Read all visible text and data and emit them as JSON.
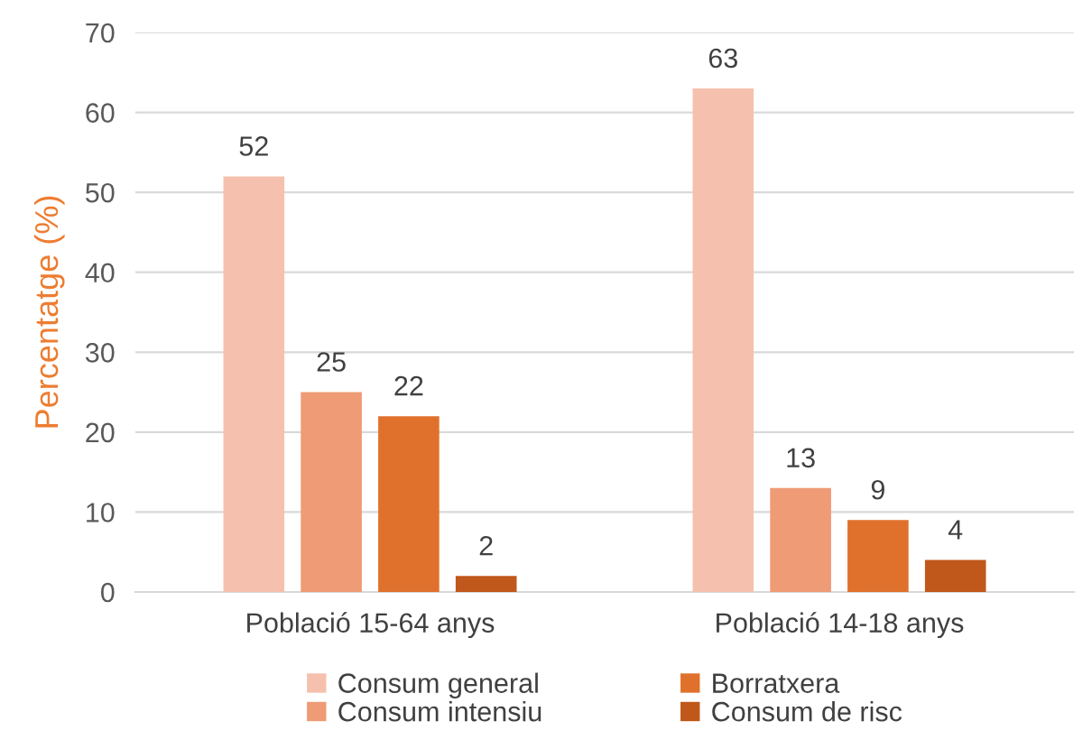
{
  "chart_data": {
    "type": "bar",
    "ylabel": "Percentatge (%)",
    "categories": [
      "Població 15-64 anys",
      "Població 14-18 anys"
    ],
    "series": [
      {
        "name": "Consum general",
        "color": "#f5c1ae",
        "values": [
          52,
          63
        ]
      },
      {
        "name": "Consum intensiu",
        "color": "#ef9b75",
        "values": [
          25,
          13
        ]
      },
      {
        "name": "Borratxera",
        "color": "#e0712c",
        "values": [
          22,
          9
        ]
      },
      {
        "name": "Consum de risc",
        "color": "#c0571b",
        "values": [
          2,
          4
        ]
      }
    ],
    "ylim": [
      0,
      70
    ],
    "yticks": [
      0,
      10,
      20,
      30,
      40,
      50,
      60,
      70
    ],
    "grid": "y",
    "data_labels": true,
    "legend": "bottom"
  }
}
